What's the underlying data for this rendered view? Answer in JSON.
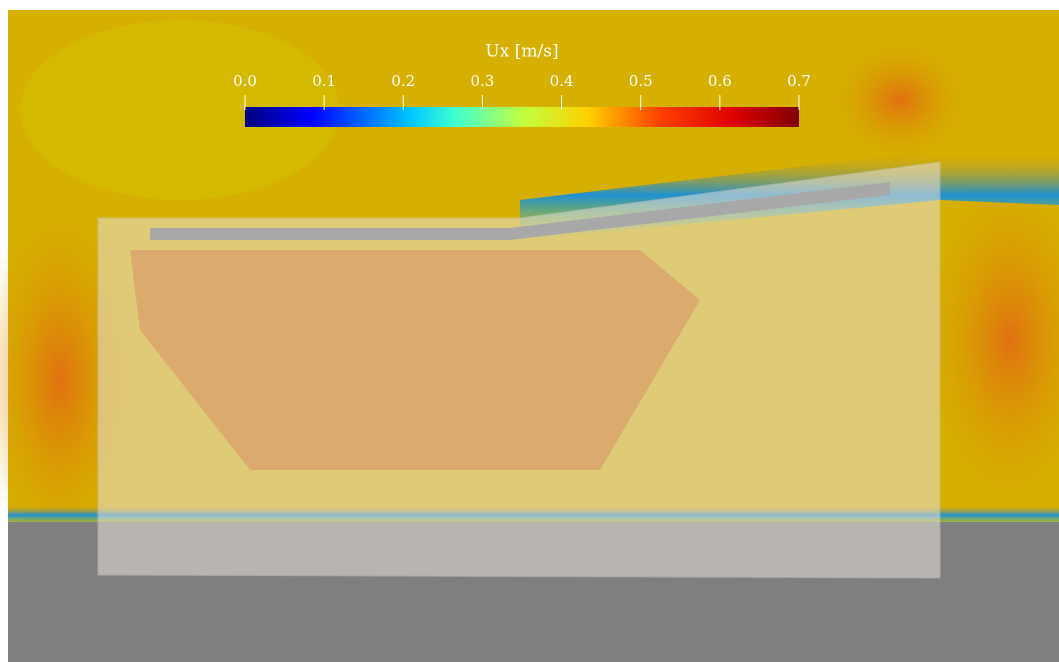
{
  "chart_data": {
    "type": "contour",
    "colorbar": {
      "title": "Ux [m/s]",
      "lim": [
        0,
        0.7
      ],
      "ticks": [
        {
          "value": 0,
          "label": "0.0"
        },
        {
          "value": 0.1,
          "label": "0.1"
        },
        {
          "value": 0.2,
          "label": "0.2"
        },
        {
          "value": 0.3,
          "label": "0.3"
        },
        {
          "value": 0.4,
          "label": "0.4"
        },
        {
          "value": 0.5,
          "label": "0.5"
        },
        {
          "value": 0.6,
          "label": "0.6"
        },
        {
          "value": 0.7,
          "label": "0.7"
        }
      ]
    }
  }
}
